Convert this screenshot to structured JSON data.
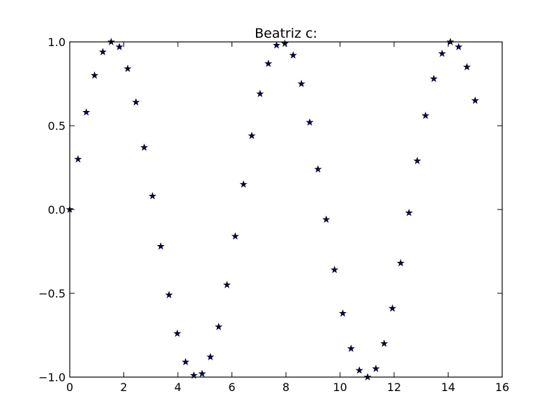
{
  "chart_data": {
    "type": "scatter",
    "title": "Beatriz c:",
    "xlabel": "",
    "ylabel": "",
    "xlim": [
      0,
      16
    ],
    "ylim": [
      -1.0,
      1.0
    ],
    "x_ticks": [
      0,
      2,
      4,
      6,
      8,
      10,
      12,
      14,
      16
    ],
    "x_tick_labels": [
      "0",
      "2",
      "4",
      "6",
      "8",
      "10",
      "12",
      "14",
      "16"
    ],
    "y_ticks": [
      -1.0,
      -0.5,
      0.0,
      0.5,
      1.0
    ],
    "y_tick_labels": [
      "−1.0",
      "−0.5",
      "0.0",
      "0.5",
      "1.0"
    ],
    "grid": false,
    "marker": "star",
    "marker_color": "#00008b",
    "series": [
      {
        "x": [
          0.0,
          0.306,
          0.612,
          0.918,
          1.224,
          1.531,
          1.837,
          2.143,
          2.449,
          2.755,
          3.061,
          3.367,
          3.673,
          3.98,
          4.286,
          4.592,
          4.898,
          5.204,
          5.51,
          5.816,
          6.122,
          6.429,
          6.735,
          7.041,
          7.347,
          7.653,
          7.959,
          8.265,
          8.571,
          8.878,
          9.184,
          9.49,
          9.796,
          10.102,
          10.408,
          10.714,
          11.02,
          11.327,
          11.633,
          11.939,
          12.245,
          12.551,
          12.857,
          13.163,
          13.469,
          13.776,
          14.082,
          14.388,
          14.694,
          15.0
        ],
        "y": [
          0.0,
          0.3,
          0.58,
          0.8,
          0.94,
          1.0,
          0.97,
          0.84,
          0.64,
          0.37,
          0.08,
          -0.22,
          -0.51,
          -0.74,
          -0.91,
          -0.99,
          -0.98,
          -0.88,
          -0.7,
          -0.45,
          -0.16,
          0.15,
          0.44,
          0.69,
          0.87,
          0.98,
          0.99,
          0.92,
          0.75,
          0.52,
          0.24,
          -0.06,
          -0.36,
          -0.62,
          -0.83,
          -0.96,
          -1.0,
          -0.95,
          -0.8,
          -0.59,
          -0.32,
          -0.02,
          0.29,
          0.56,
          0.78,
          0.93,
          1.0,
          0.97,
          0.85,
          0.65
        ]
      }
    ]
  }
}
